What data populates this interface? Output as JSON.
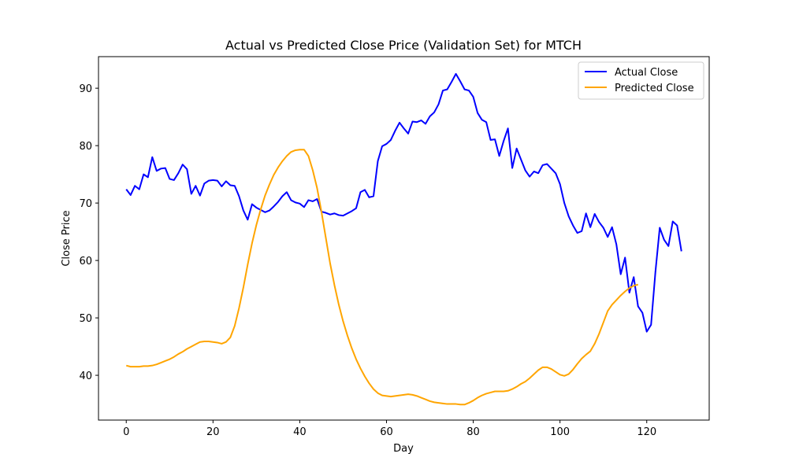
{
  "chart_data": {
    "type": "line",
    "title": "Actual vs Predicted Close Price (Validation Set) for MTCH",
    "xlabel": "Day",
    "ylabel": "Close Price",
    "xlim": [
      -6.4,
      134.4
    ],
    "ylim": [
      32.2,
      95.5
    ],
    "xticks": [
      0,
      20,
      40,
      60,
      80,
      100,
      120
    ],
    "yticks": [
      40,
      50,
      60,
      70,
      80,
      90
    ],
    "grid": false,
    "legend_position": "top-right",
    "series": [
      {
        "name": "Actual Close",
        "color": "#0000ff",
        "values": [
          72.4,
          71.4,
          73.0,
          72.4,
          75.0,
          74.5,
          78.0,
          75.6,
          76.0,
          76.1,
          74.2,
          74.0,
          75.2,
          76.7,
          75.9,
          71.6,
          73.0,
          71.3,
          73.4,
          73.9,
          74.0,
          73.9,
          72.9,
          73.8,
          73.1,
          73.0,
          71.2,
          68.7,
          67.1,
          69.8,
          69.2,
          68.8,
          68.4,
          68.7,
          69.4,
          70.2,
          71.2,
          71.9,
          70.5,
          70.1,
          69.9,
          69.3,
          70.5,
          70.3,
          70.7,
          68.5,
          68.3,
          68.0,
          68.2,
          67.9,
          67.8,
          68.2,
          68.6,
          69.1,
          71.9,
          72.3,
          71.0,
          71.2,
          77.3,
          79.9,
          80.3,
          81.0,
          82.6,
          84.0,
          83.0,
          82.1,
          84.2,
          84.1,
          84.4,
          83.8,
          85.1,
          85.8,
          87.2,
          89.6,
          89.8,
          91.1,
          92.5,
          91.2,
          89.8,
          89.6,
          88.5,
          85.7,
          84.5,
          84.1,
          81.0,
          81.1,
          78.2,
          80.8,
          83.0,
          76.1,
          79.5,
          77.6,
          75.7,
          74.6,
          75.5,
          75.2,
          76.6,
          76.8,
          76.0,
          75.2,
          73.3,
          70.0,
          67.7,
          66.1,
          64.8,
          65.1,
          68.2,
          65.8,
          68.1,
          66.7,
          65.7,
          64.1,
          65.8,
          62.8,
          57.6,
          60.5,
          54.4,
          57.1,
          52.0,
          50.9,
          47.6,
          48.8,
          58.0,
          65.7,
          63.6,
          62.5,
          66.8,
          66.1,
          61.6
        ]
      },
      {
        "name": "Predicted Close",
        "color": "#ffa500",
        "values": [
          41.7,
          41.5,
          41.5,
          41.5,
          41.6,
          41.6,
          41.7,
          41.9,
          42.2,
          42.5,
          42.8,
          43.2,
          43.7,
          44.1,
          44.6,
          45.0,
          45.4,
          45.8,
          45.9,
          45.9,
          45.8,
          45.7,
          45.5,
          45.8,
          46.6,
          48.6,
          51.7,
          55.3,
          59.3,
          63.0,
          66.2,
          68.9,
          71.3,
          73.2,
          74.9,
          76.2,
          77.3,
          78.2,
          78.9,
          79.2,
          79.3,
          79.3,
          78.2,
          75.7,
          72.6,
          68.5,
          64.0,
          59.5,
          55.7,
          52.3,
          49.4,
          46.9,
          44.7,
          42.8,
          41.2,
          39.8,
          38.6,
          37.6,
          36.9,
          36.5,
          36.4,
          36.3,
          36.4,
          36.5,
          36.6,
          36.7,
          36.6,
          36.4,
          36.1,
          35.8,
          35.5,
          35.3,
          35.2,
          35.1,
          35.0,
          35.0,
          35.0,
          34.9,
          34.9,
          35.2,
          35.6,
          36.1,
          36.5,
          36.8,
          37.0,
          37.2,
          37.2,
          37.2,
          37.3,
          37.6,
          38.0,
          38.5,
          38.9,
          39.5,
          40.2,
          40.9,
          41.4,
          41.4,
          41.1,
          40.6,
          40.1,
          39.9,
          40.2,
          41.0,
          42.0,
          42.9,
          43.6,
          44.2,
          45.5,
          47.2,
          49.2,
          51.2,
          52.3,
          53.1,
          53.9,
          54.6,
          55.2,
          55.6,
          55.8
        ]
      }
    ]
  }
}
